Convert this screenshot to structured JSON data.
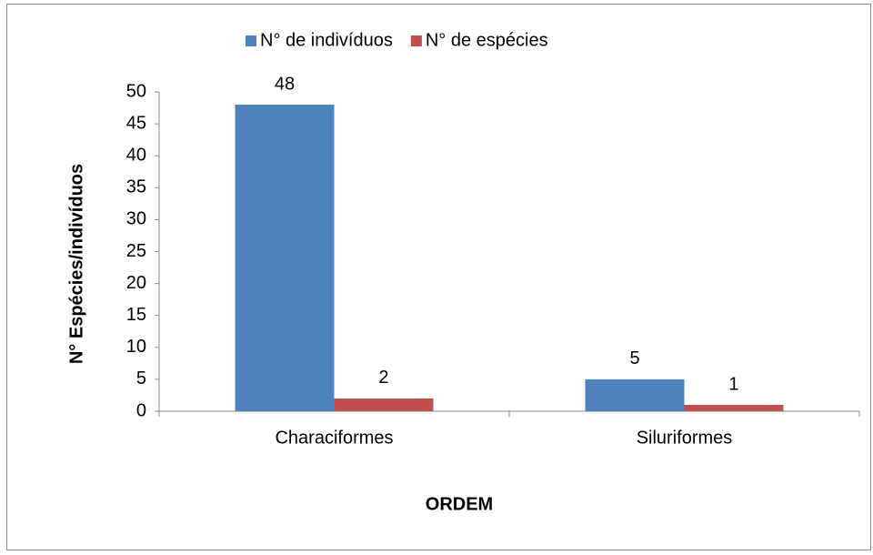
{
  "chart_data": {
    "type": "bar",
    "categories": [
      "Characiformes",
      "Siluriformes"
    ],
    "series": [
      {
        "name": "N° de indivíduos",
        "color": "#4f81bd",
        "values": [
          48,
          5
        ]
      },
      {
        "name": "N° de espécies",
        "color": "#c0504d",
        "values": [
          2,
          1
        ]
      }
    ],
    "ylim": [
      0,
      50
    ],
    "yticks": [
      0,
      5,
      10,
      15,
      20,
      25,
      30,
      35,
      40,
      45,
      50
    ],
    "ylabel": "N° Espécies/indivíduos",
    "xlabel": "ORDEM",
    "legend": "top"
  }
}
